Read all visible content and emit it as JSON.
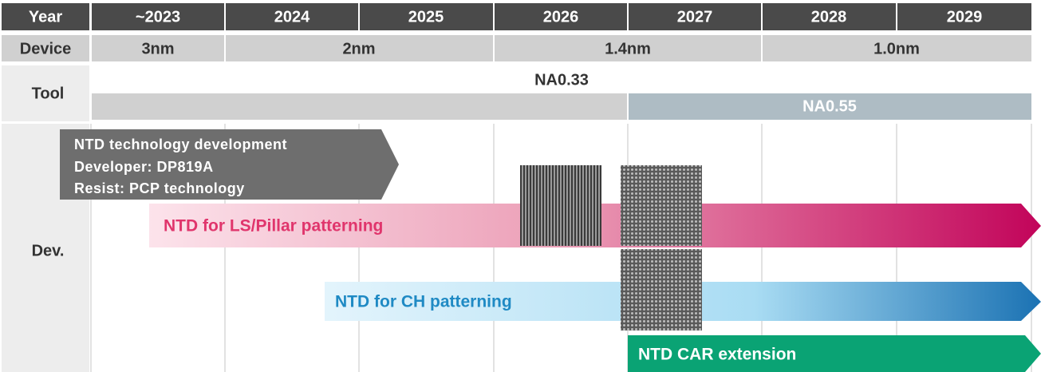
{
  "table": {
    "year_row": [
      "Year",
      "~2023",
      "2024",
      "2025",
      "2026",
      "2027",
      "2028",
      "2029"
    ],
    "device_row": [
      "Device",
      "3nm",
      "2nm",
      "1.4nm",
      "1.0nm"
    ],
    "tool": {
      "label": "Tool",
      "bars": [
        "NA0.33",
        "NA0.55"
      ]
    },
    "dev": {
      "label": "Dev.",
      "development_box": [
        "NTD technology development",
        "Developer: DP819A",
        "Resist: PCP technology"
      ],
      "arrows": [
        "NTD for LS/Pillar patterning",
        "NTD for CH patterning",
        "NTD CAR extension"
      ]
    }
  }
}
